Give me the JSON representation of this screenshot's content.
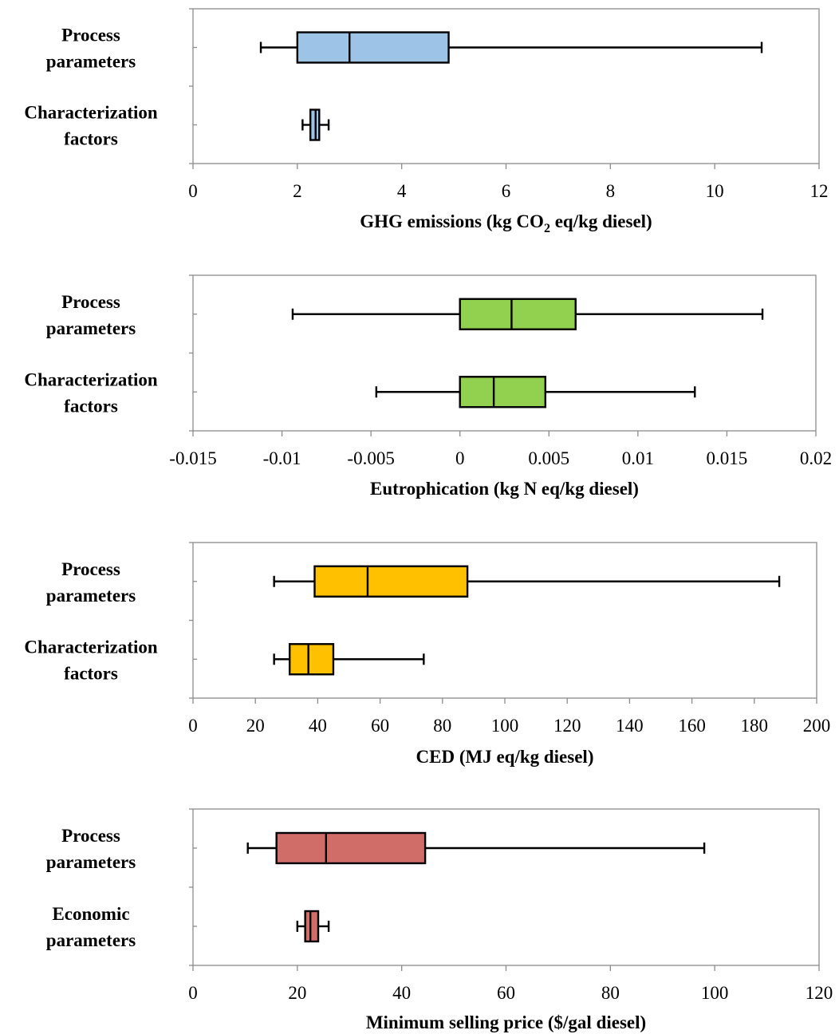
{
  "chart_data": [
    {
      "type": "box",
      "title": "",
      "xlabel": "GHG emissions (kg CO",
      "xlabel_sub": "2",
      "xlabel_rest": " eq/kg diesel)",
      "xlim": [
        0,
        12
      ],
      "xticks": [
        0,
        2,
        4,
        6,
        8,
        10,
        12
      ],
      "xtick_labels": [
        "0",
        "2",
        "4",
        "6",
        "8",
        "10",
        "12"
      ],
      "color": "#9DC3E6",
      "grid": false,
      "boxes": [
        {
          "label_lines": [
            "Process",
            "parameters"
          ],
          "min": 1.3,
          "q1": 2.0,
          "median": 3.0,
          "q3": 4.9,
          "max": 10.9
        },
        {
          "label_lines": [
            "Characterization",
            "factors"
          ],
          "min": 2.1,
          "q1": 2.25,
          "median": 2.35,
          "q3": 2.42,
          "max": 2.6
        }
      ]
    },
    {
      "type": "box",
      "title": "",
      "xlabel": "Eutrophication (kg N eq/kg diesel)",
      "xlim": [
        -0.015,
        0.02
      ],
      "xticks": [
        -0.015,
        -0.01,
        -0.005,
        0,
        0.005,
        0.01,
        0.015,
        0.02
      ],
      "xtick_labels": [
        "-0.015",
        "-0.01",
        "-0.005",
        "0",
        "0.005",
        "0.01",
        "0.015",
        "0.02"
      ],
      "color": "#92D050",
      "grid": false,
      "boxes": [
        {
          "label_lines": [
            "Process",
            "parameters"
          ],
          "min": -0.0094,
          "q1": 0.0,
          "median": 0.0029,
          "q3": 0.0065,
          "max": 0.017
        },
        {
          "label_lines": [
            "Characterization",
            "factors"
          ],
          "min": -0.0047,
          "q1": 0.0,
          "median": 0.0019,
          "q3": 0.0048,
          "max": 0.0132
        }
      ]
    },
    {
      "type": "box",
      "title": "",
      "xlabel": "CED (MJ eq/kg diesel)",
      "xlim": [
        0,
        200
      ],
      "xticks": [
        0,
        20,
        40,
        60,
        80,
        100,
        120,
        140,
        160,
        180,
        200
      ],
      "xtick_labels": [
        "0",
        "20",
        "40",
        "60",
        "80",
        "100",
        "120",
        "140",
        "160",
        "180",
        "200"
      ],
      "color": "#FFC000",
      "grid": false,
      "boxes": [
        {
          "label_lines": [
            "Process",
            "parameters"
          ],
          "min": 26,
          "q1": 39,
          "median": 56,
          "q3": 88,
          "max": 188
        },
        {
          "label_lines": [
            "Characterization",
            "factors"
          ],
          "min": 26,
          "q1": 31,
          "median": 37,
          "q3": 45,
          "max": 74
        }
      ]
    },
    {
      "type": "box",
      "title": "",
      "xlabel": "Minimum selling price ($/gal diesel)",
      "xlim": [
        0,
        120
      ],
      "xticks": [
        0,
        20,
        40,
        60,
        80,
        100,
        120
      ],
      "xtick_labels": [
        "0",
        "20",
        "40",
        "60",
        "80",
        "100",
        "120"
      ],
      "color": "#D06D69",
      "grid": false,
      "boxes": [
        {
          "label_lines": [
            "Process",
            "parameters"
          ],
          "min": 10.5,
          "q1": 16,
          "median": 25.5,
          "q3": 44.5,
          "max": 98
        },
        {
          "label_lines": [
            "Economic",
            "parameters"
          ],
          "min": 20,
          "q1": 21.5,
          "median": 22.5,
          "q3": 24,
          "max": 26
        }
      ]
    }
  ]
}
